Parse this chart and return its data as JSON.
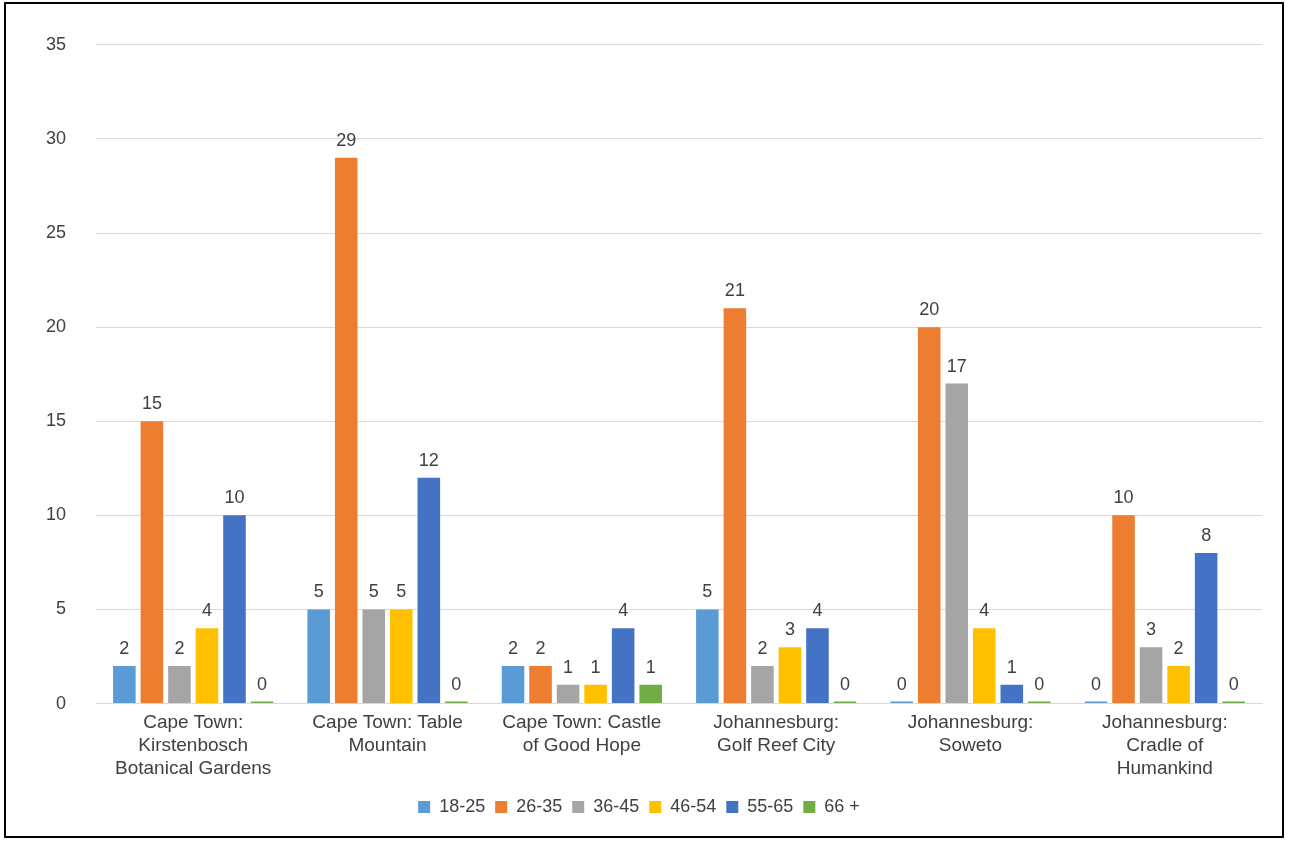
{
  "chart_data": {
    "type": "bar",
    "categories": [
      "Cape Town: Kirstenbosch Botanical Gardens",
      "Cape Town: Table Mountain",
      "Cape Town: Castle of Good Hope",
      "Johannesburg: Golf Reef City",
      "Johannesburg: Soweto",
      "Johannesburg: Cradle of Humankind"
    ],
    "series": [
      {
        "name": "18-25",
        "color": "#5b9bd5",
        "values": [
          2,
          5,
          2,
          5,
          0,
          0
        ]
      },
      {
        "name": "26-35",
        "color": "#ed7d31",
        "values": [
          15,
          29,
          2,
          21,
          20,
          10
        ]
      },
      {
        "name": "36-45",
        "color": "#a5a5a5",
        "values": [
          2,
          5,
          1,
          2,
          17,
          3
        ]
      },
      {
        "name": "46-54",
        "color": "#ffc000",
        "values": [
          4,
          5,
          1,
          3,
          4,
          2
        ]
      },
      {
        "name": "55-65",
        "color": "#4472c4",
        "values": [
          10,
          12,
          4,
          4,
          1,
          8
        ]
      },
      {
        "name": "66 +",
        "color": "#70ad47",
        "values": [
          0,
          0,
          1,
          0,
          0,
          0
        ]
      }
    ],
    "ylim": [
      0,
      35
    ],
    "yticks": [
      0,
      5,
      10,
      15,
      20,
      25,
      30,
      35
    ],
    "grid": "y",
    "legend": "bottom",
    "data_labels": true
  }
}
